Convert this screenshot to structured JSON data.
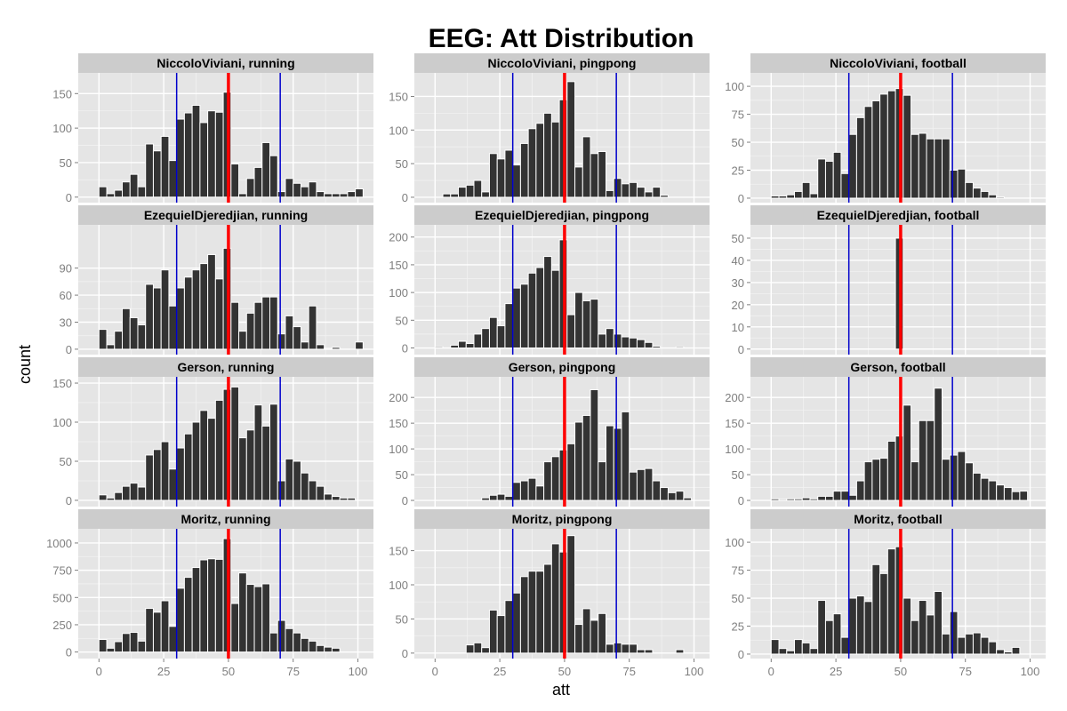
{
  "chart_data": {
    "type": "bar",
    "title": "EEG: Att Distribution",
    "xlabel": "att",
    "ylabel": "count",
    "x_ticks": [
      0,
      25,
      50,
      75,
      100
    ],
    "xlim": [
      -8,
      106
    ],
    "bin_width": 3,
    "vertical_lines": [
      {
        "x": 30,
        "color": "#0000cc"
      },
      {
        "x": 50,
        "color": "#ff0000"
      },
      {
        "x": 70,
        "color": "#0000cc"
      }
    ],
    "colors": {
      "bar": "#333333",
      "panel_bg": "#e5e5e5",
      "strip_bg": "#cccccc",
      "grid": "#ffffff",
      "tick_text": "#7f7f7f"
    },
    "grid": true,
    "panels": [
      {
        "title": "NiccoloViviani, running",
        "ylim": [
          -8,
          180
        ],
        "y_ticks": [
          0,
          50,
          100,
          150
        ],
        "x": [
          0,
          3,
          6,
          9,
          12,
          15,
          18,
          21,
          24,
          27,
          30,
          33,
          36,
          39,
          42,
          45,
          48,
          51,
          54,
          57,
          60,
          63,
          66,
          69,
          72,
          75,
          78,
          81,
          84,
          87,
          90,
          93,
          96,
          99
        ],
        "values": [
          15,
          5,
          10,
          22,
          33,
          15,
          77,
          67,
          88,
          53,
          113,
          122,
          133,
          108,
          125,
          123,
          152,
          48,
          5,
          27,
          43,
          79,
          60,
          8,
          27,
          20,
          15,
          22,
          8,
          5,
          5,
          5,
          8,
          12
        ]
      },
      {
        "title": "NiccoloViviani, pingpong",
        "ylim": [
          -8,
          185
        ],
        "y_ticks": [
          0,
          50,
          100,
          150
        ],
        "x": [
          0,
          3,
          6,
          9,
          12,
          15,
          18,
          21,
          24,
          27,
          30,
          33,
          36,
          39,
          42,
          45,
          48,
          51,
          54,
          57,
          60,
          63,
          66,
          69,
          72,
          75,
          78,
          81,
          84,
          87,
          90,
          93,
          96,
          99
        ],
        "values": [
          0,
          5,
          5,
          15,
          18,
          25,
          8,
          65,
          57,
          70,
          48,
          80,
          102,
          110,
          125,
          112,
          145,
          172,
          45,
          90,
          65,
          68,
          10,
          28,
          20,
          22,
          15,
          8,
          15,
          3,
          0,
          0,
          0,
          0
        ]
      },
      {
        "title": "NiccoloViviani, football",
        "ylim": [
          -4,
          112
        ],
        "y_ticks": [
          0,
          25,
          50,
          75,
          100
        ],
        "x": [
          0,
          3,
          6,
          9,
          12,
          15,
          18,
          21,
          24,
          27,
          30,
          33,
          36,
          39,
          42,
          45,
          48,
          51,
          54,
          57,
          60,
          63,
          66,
          69,
          72,
          75,
          78,
          81,
          84,
          87,
          90,
          93,
          96,
          99
        ],
        "values": [
          2,
          2,
          3,
          6,
          14,
          4,
          35,
          33,
          41,
          22,
          57,
          72,
          82,
          87,
          93,
          96,
          98,
          92,
          57,
          58,
          53,
          53,
          53,
          25,
          26,
          14,
          9,
          6,
          3,
          1,
          0,
          0,
          0,
          0
        ]
      },
      {
        "title": "EzequielDjeredjian, running",
        "ylim": [
          -6,
          138
        ],
        "y_ticks": [
          0,
          30,
          60,
          90
        ],
        "x": [
          0,
          3,
          6,
          9,
          12,
          15,
          18,
          21,
          24,
          27,
          30,
          33,
          36,
          39,
          42,
          45,
          48,
          51,
          54,
          57,
          60,
          63,
          66,
          69,
          72,
          75,
          78,
          81,
          84,
          87,
          90,
          93,
          96,
          99
        ],
        "values": [
          22,
          5,
          20,
          45,
          35,
          27,
          72,
          68,
          88,
          48,
          68,
          80,
          88,
          95,
          105,
          78,
          112,
          52,
          20,
          40,
          52,
          58,
          58,
          17,
          37,
          25,
          8,
          48,
          5,
          1,
          2,
          0,
          0,
          8
        ]
      },
      {
        "title": "EzequielDjeredjian, pingpong",
        "ylim": [
          -12,
          222
        ],
        "y_ticks": [
          0,
          50,
          100,
          150,
          200
        ],
        "x": [
          0,
          3,
          6,
          9,
          12,
          15,
          18,
          21,
          24,
          27,
          30,
          33,
          36,
          39,
          42,
          45,
          48,
          51,
          54,
          57,
          60,
          63,
          66,
          69,
          72,
          75,
          78,
          81,
          84,
          87,
          90,
          93,
          96,
          99
        ],
        "values": [
          2,
          0,
          5,
          12,
          8,
          25,
          35,
          55,
          40,
          80,
          108,
          115,
          135,
          145,
          165,
          140,
          195,
          60,
          100,
          85,
          88,
          25,
          35,
          25,
          20,
          18,
          15,
          10,
          3,
          0,
          0,
          2,
          0,
          0
        ]
      },
      {
        "title": "EzequielDjeredjian, football",
        "ylim": [
          -2.5,
          56
        ],
        "y_ticks": [
          0,
          10,
          20,
          30,
          40,
          50
        ],
        "x": [
          0,
          3,
          6,
          9,
          12,
          15,
          18,
          21,
          24,
          27,
          30,
          33,
          36,
          39,
          42,
          45,
          48,
          51,
          54,
          57,
          60,
          63,
          66,
          69,
          72,
          75,
          78,
          81,
          84,
          87,
          90,
          93,
          96,
          99
        ],
        "values": [
          0,
          0,
          0,
          0,
          0,
          0,
          0,
          0,
          0,
          0,
          0,
          0,
          0,
          0,
          0,
          0,
          50,
          0,
          0,
          0,
          0,
          0,
          0,
          0,
          0,
          0,
          0,
          0,
          0,
          0,
          0,
          0,
          0,
          0
        ]
      },
      {
        "title": "Gerson, running",
        "ylim": [
          -8,
          158
        ],
        "y_ticks": [
          0,
          50,
          100,
          150
        ],
        "x": [
          0,
          3,
          6,
          9,
          12,
          15,
          18,
          21,
          24,
          27,
          30,
          33,
          36,
          39,
          42,
          45,
          48,
          51,
          54,
          57,
          60,
          63,
          66,
          69,
          72,
          75,
          78,
          81,
          84,
          87,
          90,
          93,
          96,
          99
        ],
        "values": [
          7,
          3,
          10,
          18,
          22,
          17,
          58,
          65,
          75,
          40,
          67,
          85,
          100,
          115,
          105,
          128,
          142,
          145,
          80,
          90,
          122,
          95,
          123,
          25,
          53,
          50,
          35,
          25,
          18,
          8,
          5,
          3,
          3,
          0
        ]
      },
      {
        "title": "Gerson, pingpong",
        "ylim": [
          -12,
          240
        ],
        "y_ticks": [
          0,
          50,
          100,
          150,
          200
        ],
        "x": [
          0,
          3,
          6,
          9,
          12,
          15,
          18,
          21,
          24,
          27,
          30,
          33,
          36,
          39,
          42,
          45,
          48,
          51,
          54,
          57,
          60,
          63,
          66,
          69,
          72,
          75,
          78,
          81,
          84,
          87,
          90,
          93,
          96,
          99
        ],
        "values": [
          0,
          0,
          0,
          0,
          0,
          0,
          5,
          10,
          12,
          8,
          35,
          38,
          43,
          28,
          75,
          85,
          98,
          110,
          152,
          165,
          215,
          75,
          145,
          140,
          172,
          55,
          60,
          62,
          38,
          25,
          15,
          18,
          5,
          0
        ],
        "x_override": [
          0,
          3,
          6,
          9,
          12,
          15,
          18,
          21,
          24,
          27,
          30,
          33,
          36,
          39,
          42,
          45,
          48,
          51,
          54,
          57,
          60,
          63,
          66,
          69,
          72,
          75,
          78,
          81,
          84,
          87,
          90,
          93,
          96,
          99
        ]
      },
      {
        "title": "Gerson, football",
        "ylim": [
          -12,
          240
        ],
        "y_ticks": [
          0,
          50,
          100,
          150,
          200
        ],
        "x": [
          0,
          3,
          6,
          9,
          12,
          15,
          18,
          21,
          24,
          27,
          30,
          33,
          36,
          39,
          42,
          45,
          48,
          51,
          54,
          57,
          60,
          63,
          66,
          69,
          72,
          75,
          78,
          81,
          84,
          87,
          90,
          93,
          96,
          99
        ],
        "values": [
          3,
          2,
          3,
          3,
          5,
          3,
          8,
          8,
          18,
          18,
          10,
          38,
          75,
          80,
          82,
          115,
          125,
          185,
          75,
          155,
          155,
          218,
          80,
          88,
          95,
          73,
          53,
          43,
          38,
          30,
          25,
          17,
          18,
          0
        ]
      },
      {
        "title": "Moritz, running",
        "ylim": [
          -60,
          1130
        ],
        "y_ticks": [
          0,
          250,
          500,
          750,
          1000
        ],
        "x": [
          0,
          3,
          6,
          9,
          12,
          15,
          18,
          21,
          24,
          27,
          30,
          33,
          36,
          39,
          42,
          45,
          48,
          51,
          54,
          57,
          60,
          63,
          66,
          69,
          72,
          75,
          78,
          81,
          84,
          87,
          90,
          93,
          96,
          99
        ],
        "values": [
          115,
          35,
          95,
          170,
          180,
          100,
          400,
          365,
          470,
          235,
          585,
          685,
          775,
          845,
          855,
          850,
          1040,
          445,
          725,
          620,
          600,
          625,
          175,
          290,
          215,
          175,
          125,
          100,
          60,
          45,
          35,
          0,
          0,
          0
        ]
      },
      {
        "title": "Moritz, pingpong",
        "ylim": [
          -8,
          182
        ],
        "y_ticks": [
          0,
          50,
          100,
          150
        ],
        "x": [
          0,
          3,
          6,
          9,
          12,
          15,
          18,
          21,
          24,
          27,
          30,
          33,
          36,
          39,
          42,
          45,
          48,
          51,
          54,
          57,
          60,
          63,
          66,
          69,
          72,
          75,
          78,
          81,
          84,
          87,
          90,
          93,
          96,
          99
        ],
        "values": [
          0,
          0,
          0,
          0,
          12,
          15,
          8,
          63,
          55,
          77,
          88,
          112,
          120,
          120,
          130,
          160,
          148,
          172,
          42,
          65,
          48,
          58,
          13,
          15,
          13,
          13,
          5,
          5,
          0,
          0,
          0,
          5,
          0,
          0
        ]
      },
      {
        "title": "Moritz, football",
        "ylim": [
          -4,
          112
        ],
        "y_ticks": [
          0,
          25,
          50,
          75,
          100
        ],
        "x": [
          0,
          3,
          6,
          9,
          12,
          15,
          18,
          21,
          24,
          27,
          30,
          33,
          36,
          39,
          42,
          45,
          48,
          51,
          54,
          57,
          60,
          63,
          66,
          69,
          72,
          75,
          78,
          81,
          84,
          87,
          90,
          93,
          96,
          99
        ],
        "values": [
          13,
          5,
          3,
          13,
          10,
          5,
          48,
          30,
          36,
          15,
          50,
          52,
          47,
          80,
          72,
          94,
          96,
          50,
          30,
          48,
          35,
          56,
          18,
          38,
          15,
          18,
          19,
          15,
          11,
          4,
          2,
          6,
          0,
          0
        ]
      }
    ]
  }
}
